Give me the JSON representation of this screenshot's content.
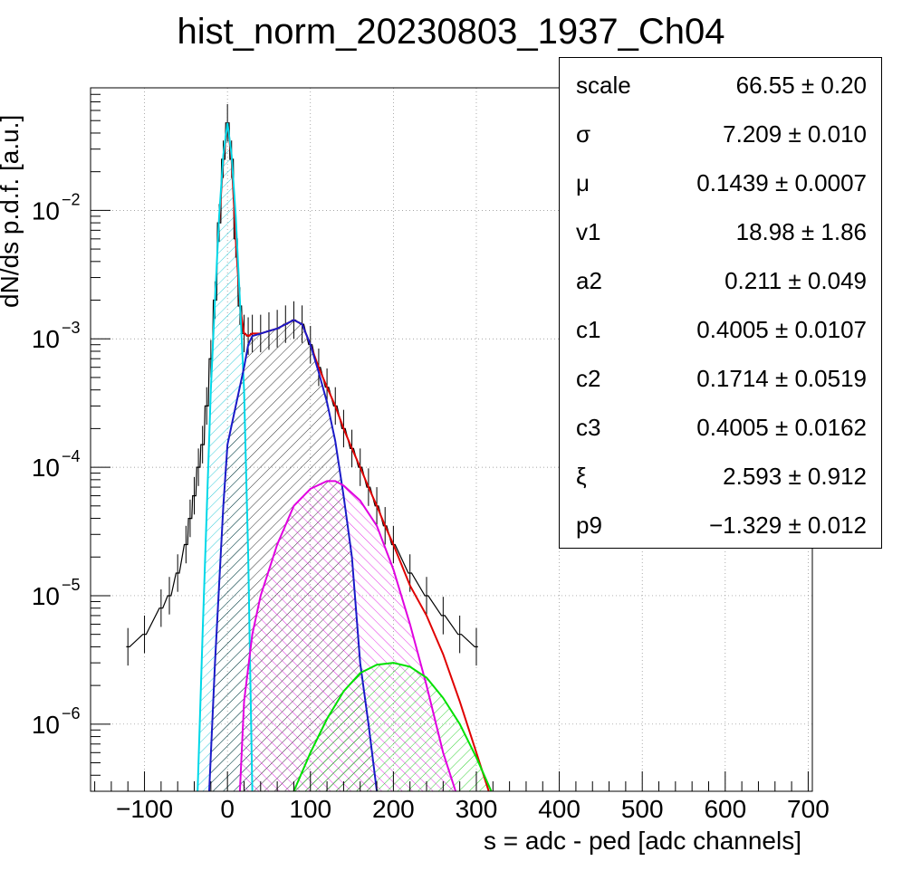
{
  "chart_data": {
    "type": "line",
    "title": "hist_norm_20230803_1937_Ch04",
    "xlabel": "s = adc - ped [adc channels]",
    "ylabel": "dN/ds p.d.f. [a.u.]",
    "xlim": [
      -165,
      705
    ],
    "ylim": [
      3e-07,
      0.09
    ],
    "y_scale": "log",
    "grid": true,
    "x_ticks": [
      -100,
      0,
      100,
      200,
      300,
      400,
      500,
      600,
      700
    ],
    "x_tick_labels": [
      "−100",
      "0",
      "100",
      "200",
      "300",
      "400",
      "500",
      "600",
      "700"
    ],
    "y_ticks": [
      1e-06,
      1e-05,
      0.0001,
      0.001,
      0.01
    ],
    "y_tick_labels": [
      "10",
      "10",
      "10",
      "10",
      "10"
    ],
    "y_tick_exponents": [
      "−6",
      "−5",
      "−4",
      "−3",
      "−2"
    ],
    "series": [
      {
        "role": "data histogram",
        "color": "#000000",
        "x": [
          -120,
          -100,
          -80,
          -70,
          -60,
          -50,
          -45,
          -40,
          -35,
          -30,
          -25,
          -20,
          -15,
          -10,
          -5,
          0,
          5,
          10,
          15,
          20,
          25,
          30,
          40,
          50,
          60,
          70,
          80,
          90,
          100,
          110,
          120,
          130,
          140,
          150,
          160,
          170,
          180,
          190,
          200,
          220,
          240,
          260,
          280,
          300
        ],
        "y": [
          4e-06,
          5e-06,
          8e-06,
          1e-05,
          1.5e-05,
          2.5e-05,
          4e-05,
          6e-05,
          0.0001,
          0.00015,
          0.0003,
          0.0007,
          0.002,
          0.008,
          0.025,
          0.048,
          0.025,
          0.006,
          0.0018,
          0.0011,
          0.00105,
          0.0011,
          0.0011,
          0.00115,
          0.0012,
          0.0013,
          0.0014,
          0.0013,
          0.0009,
          0.0006,
          0.00042,
          0.0003,
          0.0002,
          0.00014,
          0.0001,
          7e-05,
          5e-05,
          3.5e-05,
          2.5e-05,
          1.5e-05,
          1e-05,
          7e-06,
          5e-06,
          4e-06
        ]
      },
      {
        "role": "total fit",
        "color": "#e00000",
        "x": [
          -10,
          -5,
          0,
          5,
          10,
          15,
          20,
          25,
          30,
          40,
          50,
          60,
          70,
          80,
          90,
          100,
          110,
          120,
          130,
          140,
          150,
          160,
          170,
          180,
          190,
          200,
          220,
          240,
          260,
          280,
          300,
          315
        ],
        "y": [
          0.008,
          0.025,
          0.048,
          0.025,
          0.006,
          0.0018,
          0.0011,
          0.00105,
          0.0011,
          0.0011,
          0.00115,
          0.0012,
          0.0013,
          0.0014,
          0.0013,
          0.0009,
          0.0006,
          0.00042,
          0.0003,
          0.0002,
          0.00014,
          0.0001,
          7e-05,
          5e-05,
          3.5e-05,
          2.5e-05,
          1.2e-05,
          7e-06,
          3.5e-06,
          1.5e-06,
          6e-07,
          3e-07
        ]
      },
      {
        "role": "pedestal component",
        "color": "#00d8e8",
        "fill": "hatched",
        "x": [
          -36,
          -30,
          -20,
          -15,
          -10,
          -5,
          0,
          5,
          10,
          15,
          20,
          25,
          30
        ],
        "y": [
          3e-07,
          5e-06,
          0.0004,
          0.002,
          0.009,
          0.027,
          0.048,
          0.027,
          0.009,
          0.002,
          0.0004,
          2e-05,
          3e-07
        ]
      },
      {
        "role": "1 p.e. component",
        "color": "#1a1ac8",
        "fill": "hatched",
        "x": [
          -22,
          -15,
          -5,
          0,
          10,
          20,
          25,
          30,
          40,
          50,
          60,
          70,
          80,
          90,
          100,
          110,
          120,
          130,
          140,
          150,
          160,
          170,
          180
        ],
        "y": [
          3e-07,
          3e-06,
          5e-05,
          0.00015,
          0.0003,
          0.0006,
          0.0009,
          0.00105,
          0.0011,
          0.00115,
          0.0012,
          0.0013,
          0.0014,
          0.0013,
          0.0009,
          0.00055,
          0.00032,
          0.00016,
          6e-05,
          2e-05,
          3e-06,
          1e-06,
          3e-07
        ]
      },
      {
        "role": "2 p.e. component",
        "color": "#e000e0",
        "fill": "hatched",
        "x": [
          15,
          20,
          30,
          40,
          60,
          80,
          100,
          120,
          130,
          140,
          160,
          180,
          200,
          220,
          240,
          260,
          275
        ],
        "y": [
          3e-07,
          1.5e-06,
          5e-06,
          1e-05,
          2.5e-05,
          5e-05,
          6.8e-05,
          7.8e-05,
          7.8e-05,
          7.2e-05,
          5.5e-05,
          3.5e-05,
          1.6e-05,
          6e-06,
          2e-06,
          6e-07,
          3e-07
        ]
      },
      {
        "role": "3 p.e. component",
        "color": "#00e000",
        "fill": "hatched",
        "x": [
          80,
          100,
          120,
          140,
          160,
          180,
          200,
          220,
          240,
          260,
          280,
          300,
          318
        ],
        "y": [
          3e-07,
          6e-07,
          1.1e-06,
          1.8e-06,
          2.5e-06,
          2.9e-06,
          3e-06,
          2.8e-06,
          2.3e-06,
          1.6e-06,
          1e-06,
          5.5e-07,
          3e-07
        ]
      }
    ],
    "stats": [
      {
        "name": "scale",
        "value": "66.55 ± 0.20"
      },
      {
        "name": "σ",
        "value": "7.209 ± 0.010"
      },
      {
        "name": "μ",
        "value": "0.1439 ± 0.0007"
      },
      {
        "name": "v1",
        "value": "18.98 ± 1.86"
      },
      {
        "name": "a2",
        "value": "0.211 ± 0.049"
      },
      {
        "name": "c1",
        "value": "0.4005 ± 0.0107"
      },
      {
        "name": "c2",
        "value": "0.1714 ± 0.0519"
      },
      {
        "name": "c3",
        "value": "0.4005 ± 0.0162"
      },
      {
        "name": "ξ",
        "value": "2.593 ± 0.912"
      },
      {
        "name": "p9",
        "value": "−1.329 ± 0.012"
      }
    ]
  }
}
